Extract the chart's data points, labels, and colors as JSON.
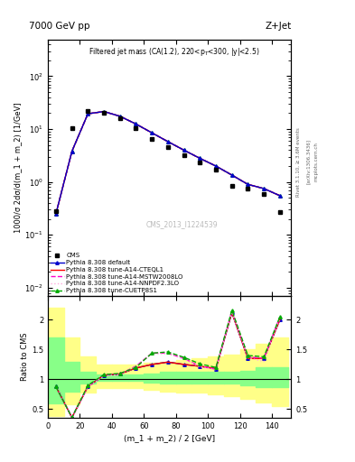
{
  "title_top": "7000 GeV pp",
  "title_right": "Z+Jet",
  "plot_title": "Filtered jet mass (CA(1.2), 220<p$_{T}$<300, |y|<2.5)",
  "xlabel": "(m_1 + m_2) / 2 [GeV]",
  "ylabel_main": "1000/σ 2dσ/d(m_1 + m_2) [1/GeV]",
  "ylabel_ratio": "Ratio to CMS",
  "watermark": "CMS_2013_I1224539",
  "rivet_label": "Rivet 3.1.10, ≥ 3.6M events",
  "arxiv_label": "[arXiv:1306.3436]",
  "mcplots_label": "mcplots.cern.ch",
  "cms_x": [
    5,
    15,
    25,
    35,
    45,
    55,
    65,
    75,
    85,
    95,
    105,
    115,
    125,
    135,
    145
  ],
  "cms_y": [
    0.28,
    10.5,
    22.0,
    20.0,
    16.0,
    10.5,
    6.5,
    4.5,
    3.2,
    2.3,
    1.7,
    0.85,
    0.75,
    0.6,
    0.27
  ],
  "mc_x": [
    5,
    15,
    25,
    35,
    45,
    55,
    65,
    75,
    85,
    95,
    105,
    115,
    125,
    135,
    145
  ],
  "py_default_y": [
    0.25,
    3.8,
    19.5,
    21.5,
    17.5,
    12.5,
    8.5,
    5.8,
    4.0,
    2.8,
    2.0,
    1.35,
    0.9,
    0.75,
    0.55
  ],
  "py_CTEQL1_y": [
    0.25,
    3.8,
    19.5,
    21.5,
    17.5,
    12.5,
    8.5,
    5.8,
    4.0,
    2.8,
    2.0,
    1.35,
    0.9,
    0.75,
    0.55
  ],
  "py_MSTW_y": [
    0.25,
    3.8,
    19.5,
    21.5,
    17.5,
    12.5,
    8.5,
    5.8,
    4.0,
    2.8,
    2.0,
    1.35,
    0.9,
    0.75,
    0.55
  ],
  "py_NNPDF_y": [
    0.25,
    3.8,
    19.5,
    21.5,
    17.5,
    12.5,
    8.5,
    5.8,
    4.0,
    2.8,
    2.0,
    1.35,
    0.9,
    0.75,
    0.55
  ],
  "py_CUETP_y": [
    0.25,
    3.8,
    19.5,
    21.5,
    17.5,
    12.5,
    8.5,
    5.8,
    4.0,
    2.8,
    2.0,
    1.35,
    0.9,
    0.75,
    0.55
  ],
  "ratio_x": [
    5,
    15,
    25,
    35,
    45,
    55,
    65,
    75,
    85,
    95,
    105,
    115,
    125,
    135,
    145
  ],
  "ratio_default": [
    0.88,
    0.36,
    0.88,
    1.07,
    1.09,
    1.19,
    1.25,
    1.29,
    1.25,
    1.22,
    1.18,
    2.12,
    1.35,
    1.35,
    2.0
  ],
  "ratio_CTEQL1": [
    0.88,
    0.36,
    0.88,
    1.07,
    1.09,
    1.19,
    1.25,
    1.29,
    1.25,
    1.22,
    1.18,
    2.12,
    1.35,
    1.35,
    2.0
  ],
  "ratio_MSTW": [
    0.89,
    0.36,
    0.88,
    1.07,
    1.09,
    1.22,
    1.44,
    1.44,
    1.35,
    1.22,
    1.17,
    2.15,
    1.38,
    1.35,
    2.05
  ],
  "ratio_NNPDF": [
    0.89,
    0.36,
    0.88,
    1.06,
    1.08,
    1.21,
    1.43,
    1.43,
    1.34,
    1.21,
    1.16,
    2.13,
    1.36,
    1.3,
    2.02
  ],
  "ratio_CUETP": [
    0.88,
    0.36,
    0.9,
    1.08,
    1.1,
    1.2,
    1.44,
    1.46,
    1.37,
    1.26,
    1.2,
    2.16,
    1.4,
    1.38,
    2.05
  ],
  "band_edges": [
    0,
    10,
    20,
    30,
    40,
    50,
    60,
    70,
    80,
    90,
    100,
    110,
    120,
    130,
    140,
    150
  ],
  "green_lo": [
    0.6,
    0.8,
    0.93,
    0.97,
    0.97,
    0.97,
    0.95,
    0.93,
    0.93,
    0.93,
    0.93,
    0.93,
    0.9,
    0.87,
    0.87,
    0.87
  ],
  "green_hi": [
    1.7,
    1.3,
    1.12,
    1.08,
    1.08,
    1.08,
    1.1,
    1.12,
    1.12,
    1.12,
    1.12,
    1.12,
    1.15,
    1.2,
    1.2,
    1.2
  ],
  "yellow_lo": [
    0.38,
    0.58,
    0.78,
    0.85,
    0.85,
    0.85,
    0.82,
    0.8,
    0.78,
    0.78,
    0.75,
    0.72,
    0.68,
    0.62,
    0.55,
    0.55
  ],
  "yellow_hi": [
    2.2,
    1.7,
    1.38,
    1.25,
    1.25,
    1.25,
    1.28,
    1.3,
    1.32,
    1.35,
    1.38,
    1.42,
    1.5,
    1.6,
    1.7,
    1.7
  ],
  "color_default": "#0000cc",
  "color_CTEQL1": "#ff0000",
  "color_MSTW": "#ff00cc",
  "color_NNPDF": "#ffaadd",
  "color_CUETP": "#00aa00",
  "ylim_main": [
    0.007,
    500
  ],
  "ylim_ratio": [
    0.35,
    2.4
  ],
  "xlim": [
    0,
    152
  ]
}
